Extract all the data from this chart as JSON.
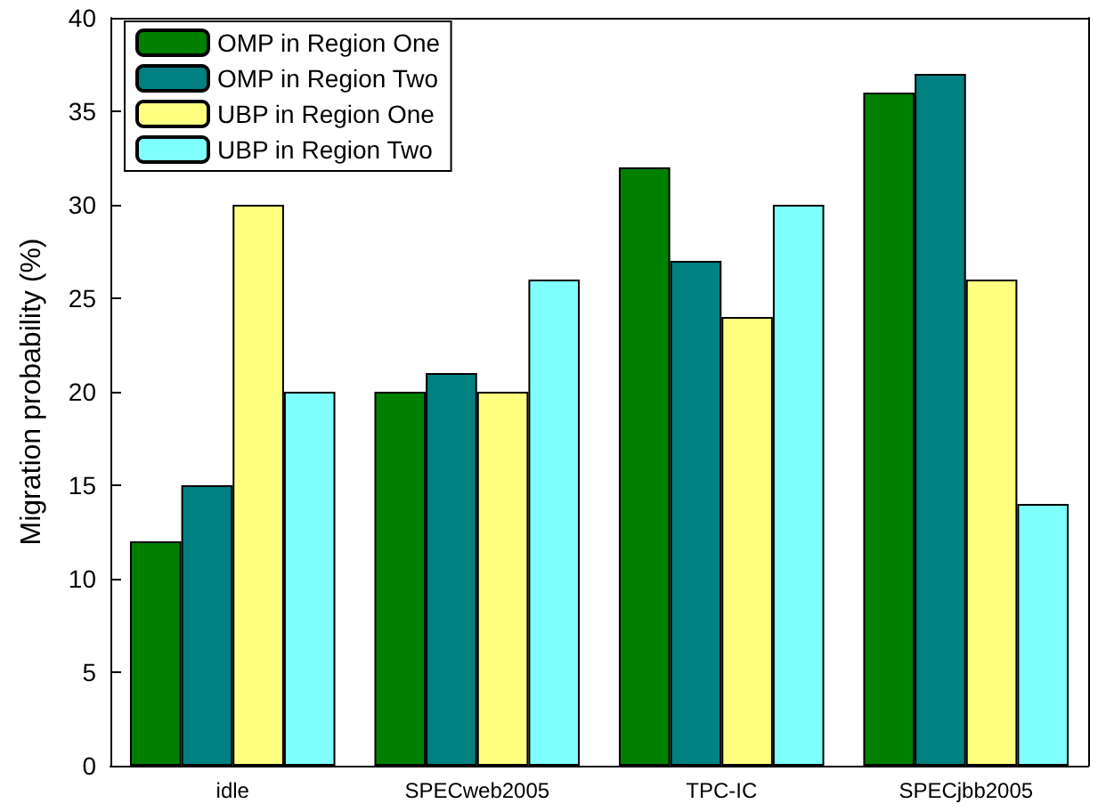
{
  "chart_data": {
    "type": "bar",
    "ylabel": "Migration probability (%)",
    "categories": [
      "idle",
      "SPECweb2005",
      "TPC-IC",
      "SPECjbb2005"
    ],
    "series": [
      {
        "name": "OMP in Region One",
        "color": "#008000",
        "values": [
          12,
          20,
          32,
          36
        ]
      },
      {
        "name": "OMP in Region Two",
        "color": "#008080",
        "values": [
          15,
          21,
          27,
          37
        ]
      },
      {
        "name": "UBP in Region One",
        "color": "#ffff80",
        "values": [
          30,
          20,
          24,
          26
        ]
      },
      {
        "name": "UBP in Region Two",
        "color": "#80ffff",
        "values": [
          20,
          26,
          30,
          14
        ]
      }
    ],
    "ylim": [
      0,
      40
    ],
    "yticks": [
      0,
      5,
      10,
      15,
      20,
      25,
      30,
      35,
      40
    ],
    "grid": false,
    "legend": "top left"
  }
}
